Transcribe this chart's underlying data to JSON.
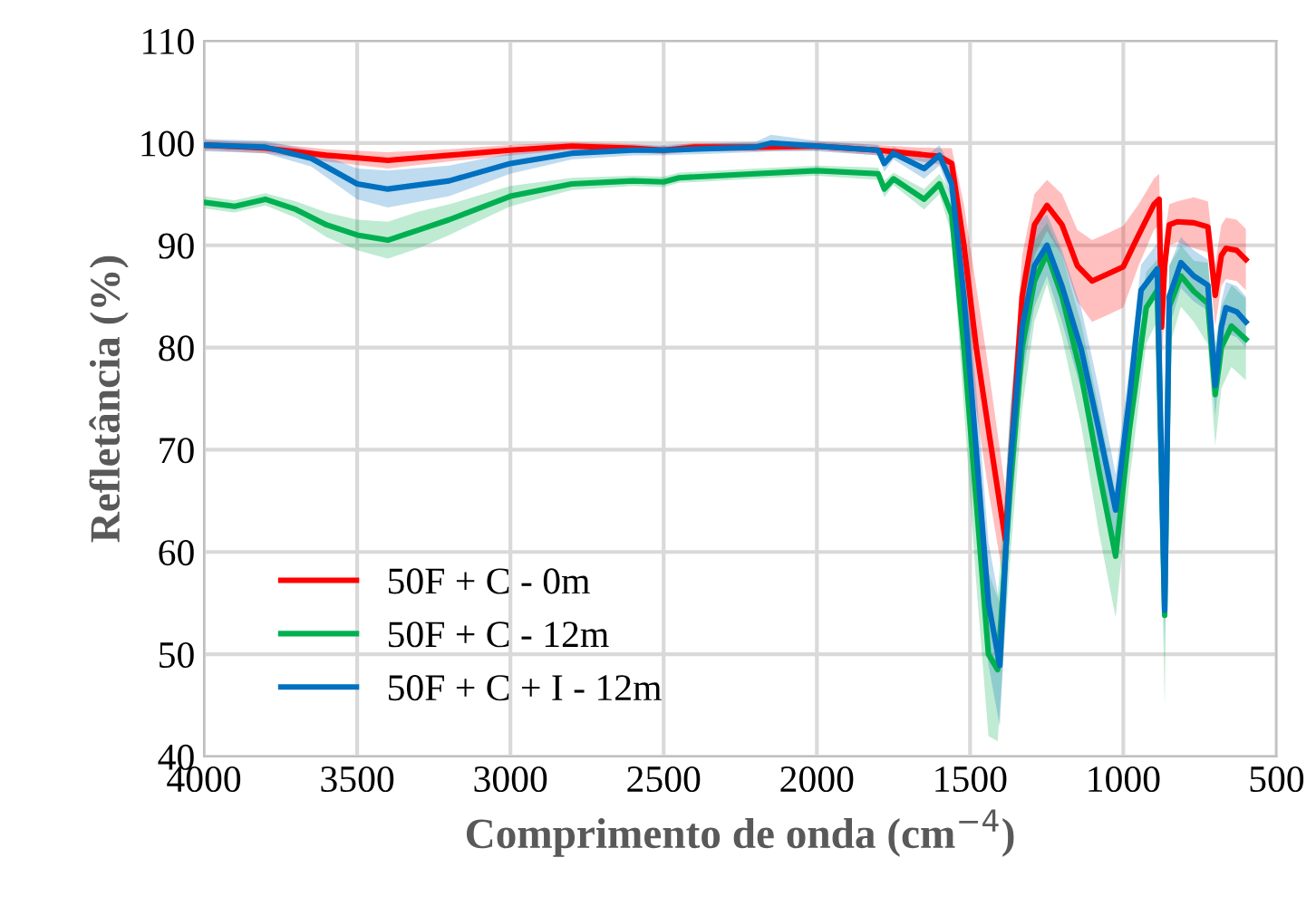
{
  "chart_data": {
    "type": "line",
    "xlabel": "Comprimento de onda (cm$^{−4}$)",
    "ylabel": "Refletância (%)",
    "xlim": [
      4000,
      500
    ],
    "xticks": [
      4000,
      3500,
      3000,
      2500,
      2000,
      1500,
      1000,
      500
    ],
    "ylim": [
      40,
      110
    ],
    "yticks": [
      40,
      50,
      60,
      70,
      80,
      90,
      100,
      110
    ],
    "grid": true,
    "legend": "bottom left",
    "marker": "none",
    "line_style": "solid",
    "series": [
      {
        "name": "50F + C - 0m",
        "color": "#ff0000",
        "x": [
          4000,
          3800,
          3600,
          3400,
          3200,
          3000,
          2800,
          2600,
          2500,
          2400,
          2200,
          2000,
          1800,
          1700,
          1600,
          1560,
          1520,
          1480,
          1440,
          1385,
          1330,
          1290,
          1249,
          1200,
          1150,
          1102,
          1050,
          1000,
          950,
          900,
          883,
          875,
          865,
          850,
          824,
          770,
          724,
          700,
          680,
          665,
          630,
          600
        ],
        "values": [
          99.8,
          99.5,
          98.8,
          98.3,
          98.8,
          99.3,
          99.7,
          99.5,
          99.3,
          99.6,
          99.6,
          99.7,
          99.3,
          99.0,
          98.7,
          98.0,
          90,
          80,
          72,
          61.2,
          85,
          92,
          93.9,
          92,
          88,
          86.5,
          87.2,
          87.9,
          91,
          94,
          94.5,
          82,
          88,
          92,
          92.3,
          92.2,
          91.8,
          85.1,
          89,
          89.7,
          89.5,
          88.6
        ],
        "lower": [
          99.3,
          99.0,
          98.2,
          97.5,
          98.2,
          98.8,
          99.3,
          99.1,
          98.9,
          99.2,
          99.2,
          99.3,
          98.8,
          98.4,
          97.9,
          96.5,
          86,
          74,
          66,
          56.2,
          81,
          89,
          91.4,
          89,
          84.5,
          82.5,
          83.2,
          83.9,
          88,
          91.5,
          92,
          78,
          85,
          90,
          90.3,
          89.7,
          89.3,
          82.1,
          86,
          86.7,
          86.5,
          85.6
        ],
        "upper": [
          100.3,
          100.0,
          99.4,
          99.1,
          99.4,
          99.8,
          100.1,
          99.9,
          99.7,
          100.0,
          100.0,
          100.1,
          99.8,
          99.6,
          99.5,
          99.5,
          94,
          86,
          78,
          66.2,
          89,
          95,
          96.4,
          95,
          91.5,
          90.5,
          91.2,
          91.9,
          94,
          96.5,
          97,
          86,
          91,
          94,
          94.3,
          94.7,
          94.3,
          88.1,
          92,
          92.7,
          92.5,
          91.6
        ]
      },
      {
        "name": "50F + C - 12m",
        "color": "#00b050",
        "x": [
          4000,
          3900,
          3800,
          3700,
          3600,
          3500,
          3400,
          3300,
          3200,
          3000,
          2800,
          2600,
          2500,
          2450,
          2200,
          2000,
          1800,
          1780,
          1750,
          1650,
          1600,
          1560,
          1520,
          1480,
          1440,
          1410,
          1370,
          1330,
          1290,
          1249,
          1200,
          1137,
          1080,
          1025,
          980,
          925,
          889,
          865,
          850,
          812,
          770,
          724,
          700,
          680,
          647,
          600
        ],
        "values": [
          94.2,
          93.8,
          94.5,
          93.5,
          92,
          91,
          90.5,
          91.5,
          92.5,
          94.8,
          96,
          96.3,
          96.2,
          96.6,
          97,
          97.3,
          97,
          95.5,
          96.5,
          94.5,
          96,
          93,
          80,
          65,
          50,
          48.5,
          66,
          80,
          86.5,
          89.2,
          85,
          77.3,
          68,
          59.6,
          72,
          83.9,
          85.6,
          53.8,
          84,
          87,
          85.5,
          84.3,
          75.4,
          80,
          82.1,
          80.8
        ],
        "lower": [
          93.6,
          93.2,
          93.9,
          92.7,
          90.8,
          89.5,
          88.7,
          89.7,
          91,
          93.8,
          95.4,
          95.8,
          95.7,
          96.1,
          96.5,
          96.8,
          96.4,
          94.7,
          95.9,
          93.5,
          95,
          91,
          74,
          57,
          42,
          41.5,
          59,
          74,
          82.5,
          86.2,
          81,
          72.3,
          62,
          53.6,
          67,
          80.4,
          82.6,
          44.8,
          80,
          84,
          82.5,
          80.3,
          70.4,
          76,
          78.1,
          76.8
        ],
        "upper": [
          94.8,
          94.4,
          95.1,
          94.3,
          93.2,
          92.5,
          92.3,
          93.3,
          94,
          95.8,
          96.6,
          96.8,
          96.7,
          97.1,
          97.5,
          97.8,
          97.6,
          96.3,
          97.1,
          95.5,
          97,
          95,
          86,
          73,
          58,
          55.5,
          73,
          86,
          90.5,
          92.2,
          89,
          82.3,
          74,
          65.6,
          77,
          87.4,
          88.6,
          62.8,
          88,
          90,
          88.5,
          88.3,
          80.4,
          84,
          86.1,
          84.8
        ]
      },
      {
        "name": "50F + C + I - 12m",
        "color": "#0070c0",
        "x": [
          4000,
          3800,
          3650,
          3500,
          3400,
          3200,
          3000,
          2800,
          2600,
          2500,
          2200,
          2150,
          2000,
          1800,
          1780,
          1750,
          1650,
          1600,
          1560,
          1520,
          1480,
          1440,
          1403,
          1370,
          1330,
          1290,
          1249,
          1200,
          1137,
          1080,
          1025,
          980,
          942,
          889,
          865,
          850,
          812,
          770,
          724,
          700,
          680,
          665,
          630,
          600
        ],
        "values": [
          99.8,
          99.6,
          98.5,
          96,
          95.5,
          96.3,
          98,
          99,
          99.3,
          99.3,
          99.6,
          100,
          99.7,
          99.3,
          98,
          99,
          97.5,
          98.8,
          96,
          85,
          70,
          55,
          48.9,
          68,
          82,
          88,
          90,
          86,
          79.8,
          72,
          64.1,
          75,
          85.6,
          87.7,
          54.3,
          85,
          88.3,
          87,
          86.1,
          76.3,
          82,
          83.9,
          83.5,
          82.5
        ],
        "lower": [
          99.2,
          99.0,
          97.7,
          94.5,
          93.7,
          94.8,
          97,
          98.4,
          98.8,
          98.8,
          99.1,
          99.2,
          99.2,
          98.8,
          97.2,
          98.4,
          96.5,
          97.8,
          94.5,
          80,
          64,
          49,
          42.9,
          62,
          77,
          84,
          87,
          82.5,
          75.8,
          68,
          60.6,
          72,
          83.1,
          85.2,
          51.3,
          82,
          85.8,
          84.5,
          83.6,
          73.3,
          79.5,
          81.4,
          81,
          80
        ],
        "upper": [
          100.4,
          100.2,
          99.3,
          97.5,
          97.3,
          97.8,
          99,
          99.6,
          99.8,
          99.8,
          100.1,
          100.8,
          100.2,
          99.8,
          98.8,
          99.6,
          98.5,
          99.8,
          97.5,
          90,
          76,
          61,
          54.9,
          74,
          87,
          92,
          93,
          89.5,
          83.8,
          76,
          67.6,
          78,
          88.1,
          90.2,
          57.3,
          88,
          90.8,
          89.5,
          88.6,
          79.3,
          84.5,
          86.4,
          86,
          85
        ]
      }
    ]
  }
}
